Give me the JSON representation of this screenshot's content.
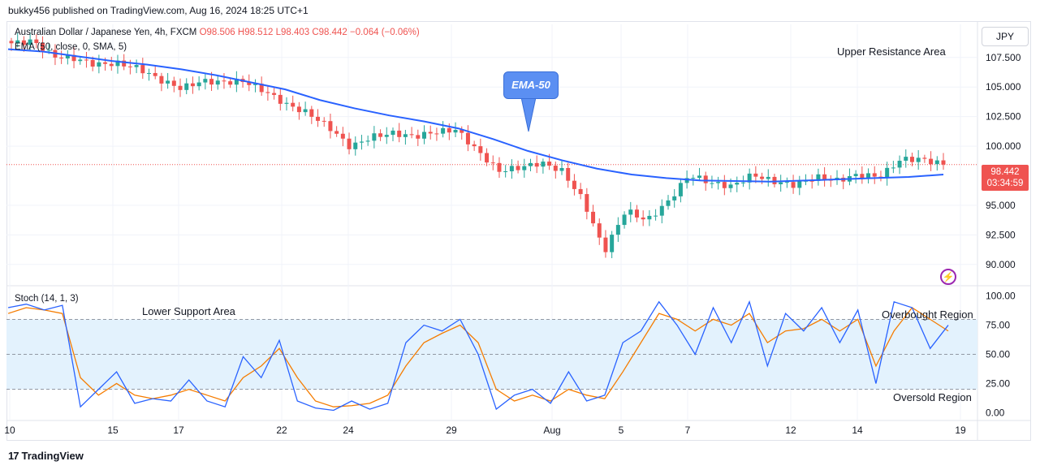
{
  "publisher": "bukky456 published on TradingView.com, Aug 16, 2024 18:25 UTC+1",
  "legend": {
    "symbol": "Australian Dollar / Japanese Yen, 4h, FXCM",
    "ohlc": "O98.506 H98.512 L98.403 C98.442 −0.064 (−0.06%)",
    "ema": "EMA (50, close, 0, SMA, 5)",
    "stoch": "Stoch (14, 1, 3)"
  },
  "currency": "JPY",
  "price_tag": {
    "price": "98.442",
    "countdown": "03:34:59"
  },
  "annotations": {
    "upper_resistance": "Upper Resistance Area",
    "lower_support": "Lower Support Area",
    "overbought": "Overbought Region",
    "oversold": "Oversold Region",
    "ema_callout": "EMA-50"
  },
  "footer": {
    "brand": "TradingView",
    "logo_glyph": "17"
  },
  "colors": {
    "up": "#26a69a",
    "down": "#ef5350",
    "ema": "#2962ff",
    "k": "#2962ff",
    "d": "#f57c00",
    "band": "#e3f2fd"
  },
  "chart_data": [
    {
      "type": "candlestick",
      "title": "Australian Dollar / Japanese Yen, 4h, FXCM",
      "x_ticks": [
        "10",
        "15",
        "17",
        "22",
        "24",
        "29",
        "Aug",
        "5",
        "7",
        "12",
        "14",
        "19"
      ],
      "y_ticks": [
        "107.500",
        "105.000",
        "102.500",
        "100.000",
        "95.000",
        "92.500",
        "90.000"
      ],
      "ylim": [
        88.2,
        110.3
      ],
      "last_price": 98.442,
      "close_path": [
        108.7,
        108.9,
        107.6,
        107.4,
        106.9,
        107.0,
        106.6,
        105.6,
        104.9,
        105.5,
        105.4,
        105.5,
        104.6,
        103.5,
        102.8,
        101.6,
        99.9,
        100.8,
        101.1,
        100.8,
        101.2,
        101.4,
        99.6,
        97.9,
        98.2,
        98.6,
        97.9,
        95.4,
        91.1,
        94.6,
        93.7,
        95.3,
        97.6,
        96.9,
        96.6,
        97.6,
        97.0,
        96.7,
        97.4,
        97.1,
        97.6,
        97.4,
        98.9,
        98.9,
        98.44
      ],
      "ema_path": [
        108.2,
        108.0,
        107.6,
        107.2,
        106.9,
        106.5,
        106.0,
        105.4,
        104.8,
        103.9,
        103.2,
        102.6,
        102.1,
        101.5,
        100.6,
        99.6,
        98.8,
        98.1,
        97.6,
        97.3,
        97.1,
        97.05,
        97.0,
        97.1,
        97.2,
        97.3,
        97.4,
        97.6
      ],
      "legend": [
        "EMA (50, close, 0, SMA, 5)"
      ],
      "grid": true
    },
    {
      "type": "line",
      "title": "Stoch (14, 1, 3)",
      "y_ticks": [
        "100.00",
        "75.00",
        "50.00",
        "25.00",
        "0.00"
      ],
      "ylim": [
        -6,
        106
      ],
      "band": [
        20,
        80
      ],
      "k_path": [
        90,
        93,
        88,
        92,
        5,
        20,
        35,
        8,
        12,
        10,
        28,
        10,
        5,
        48,
        30,
        62,
        10,
        4,
        2,
        10,
        3,
        8,
        60,
        75,
        70,
        80,
        50,
        3,
        15,
        20,
        8,
        35,
        10,
        15,
        60,
        70,
        95,
        75,
        50,
        90,
        60,
        95,
        40,
        85,
        70,
        90,
        60,
        88,
        25,
        95,
        90,
        55,
        75
      ],
      "d_path": [
        85,
        90,
        88,
        85,
        30,
        15,
        25,
        15,
        12,
        15,
        20,
        15,
        10,
        30,
        40,
        55,
        30,
        10,
        5,
        6,
        8,
        15,
        40,
        60,
        68,
        75,
        60,
        20,
        10,
        15,
        10,
        20,
        15,
        12,
        35,
        60,
        85,
        80,
        70,
        80,
        75,
        85,
        60,
        70,
        72,
        80,
        70,
        80,
        40,
        70,
        90,
        80,
        70
      ],
      "legend": [
        "Stoch (14, 1, 3)"
      ],
      "grid": true
    }
  ]
}
